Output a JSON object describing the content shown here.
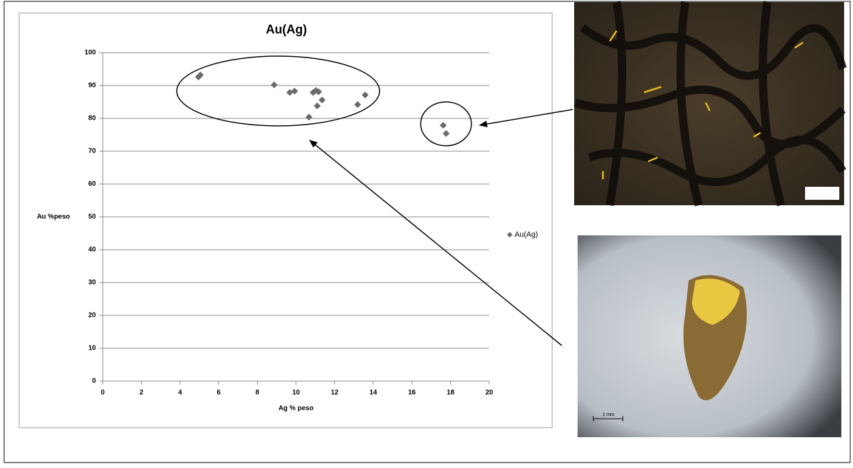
{
  "chart_data": {
    "type": "scatter",
    "title": "Au(Ag)",
    "xlabel": "Ag % peso",
    "ylabel": "Au %peso",
    "series": [
      {
        "name": "Au(Ag)",
        "color": "#6b6b6b",
        "x": [
          4.95,
          5.05,
          8.87,
          9.68,
          9.93,
          10.89,
          11.03,
          11.17,
          11.35,
          11.1,
          10.67,
          13.19,
          13.58,
          17.62,
          17.77
        ],
        "y": [
          92.6,
          93.2,
          90.2,
          87.9,
          88.3,
          87.9,
          88.5,
          88.1,
          85.6,
          83.8,
          80.4,
          84.2,
          87.1,
          77.9,
          75.4
        ]
      }
    ],
    "xlim": [
      0,
      20
    ],
    "ylim": [
      0,
      100
    ],
    "xticks": [
      0,
      2,
      4,
      6,
      8,
      10,
      12,
      14,
      16,
      18,
      20
    ],
    "yticks": [
      0,
      10,
      20,
      30,
      40,
      50,
      60,
      70,
      80,
      90,
      100
    ],
    "grid": true,
    "legend": "right"
  },
  "image_annotations": {
    "scale_label": "1 mm"
  }
}
